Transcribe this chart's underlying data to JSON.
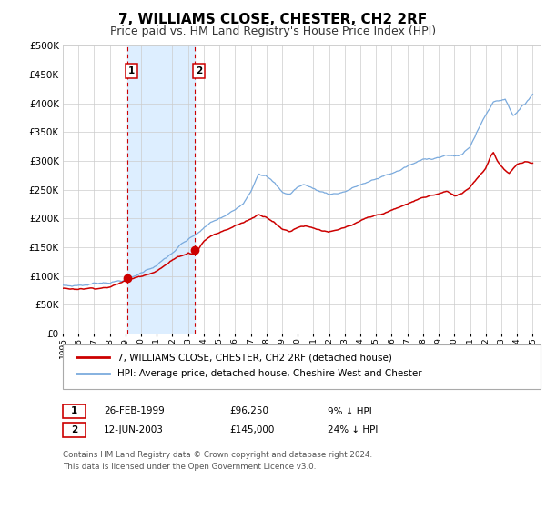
{
  "title": "7, WILLIAMS CLOSE, CHESTER, CH2 2RF",
  "subtitle": "Price paid vs. HM Land Registry's House Price Index (HPI)",
  "ylim": [
    0,
    500000
  ],
  "yticks": [
    0,
    50000,
    100000,
    150000,
    200000,
    250000,
    300000,
    350000,
    400000,
    450000,
    500000
  ],
  "ytick_labels": [
    "£0",
    "£50K",
    "£100K",
    "£150K",
    "£200K",
    "£250K",
    "£300K",
    "£350K",
    "£400K",
    "£450K",
    "£500K"
  ],
  "xlim_start": 1995.0,
  "xlim_end": 2025.5,
  "xtick_years": [
    1995,
    1996,
    1997,
    1998,
    1999,
    2000,
    2001,
    2002,
    2003,
    2004,
    2005,
    2006,
    2007,
    2008,
    2009,
    2010,
    2011,
    2012,
    2013,
    2014,
    2015,
    2016,
    2017,
    2018,
    2019,
    2020,
    2021,
    2022,
    2023,
    2024,
    2025
  ],
  "sale1_x": 1999.12,
  "sale1_y": 96250,
  "sale2_x": 2003.44,
  "sale2_y": 145000,
  "highlight_color": "#ddeeff",
  "hpi_line_color": "#7aaadd",
  "sale_line_color": "#cc0000",
  "sale_dot_color": "#cc0000",
  "legend1_text": "7, WILLIAMS CLOSE, CHESTER, CH2 2RF (detached house)",
  "legend2_text": "HPI: Average price, detached house, Cheshire West and Chester",
  "table_row1": [
    "1",
    "26-FEB-1999",
    "£96,250",
    "9% ↓ HPI"
  ],
  "table_row2": [
    "2",
    "12-JUN-2003",
    "£145,000",
    "24% ↓ HPI"
  ],
  "footer": "Contains HM Land Registry data © Crown copyright and database right 2024.\nThis data is licensed under the Open Government Licence v3.0.",
  "background_color": "#ffffff",
  "grid_color": "#cccccc",
  "title_fontsize": 11,
  "subtitle_fontsize": 9
}
